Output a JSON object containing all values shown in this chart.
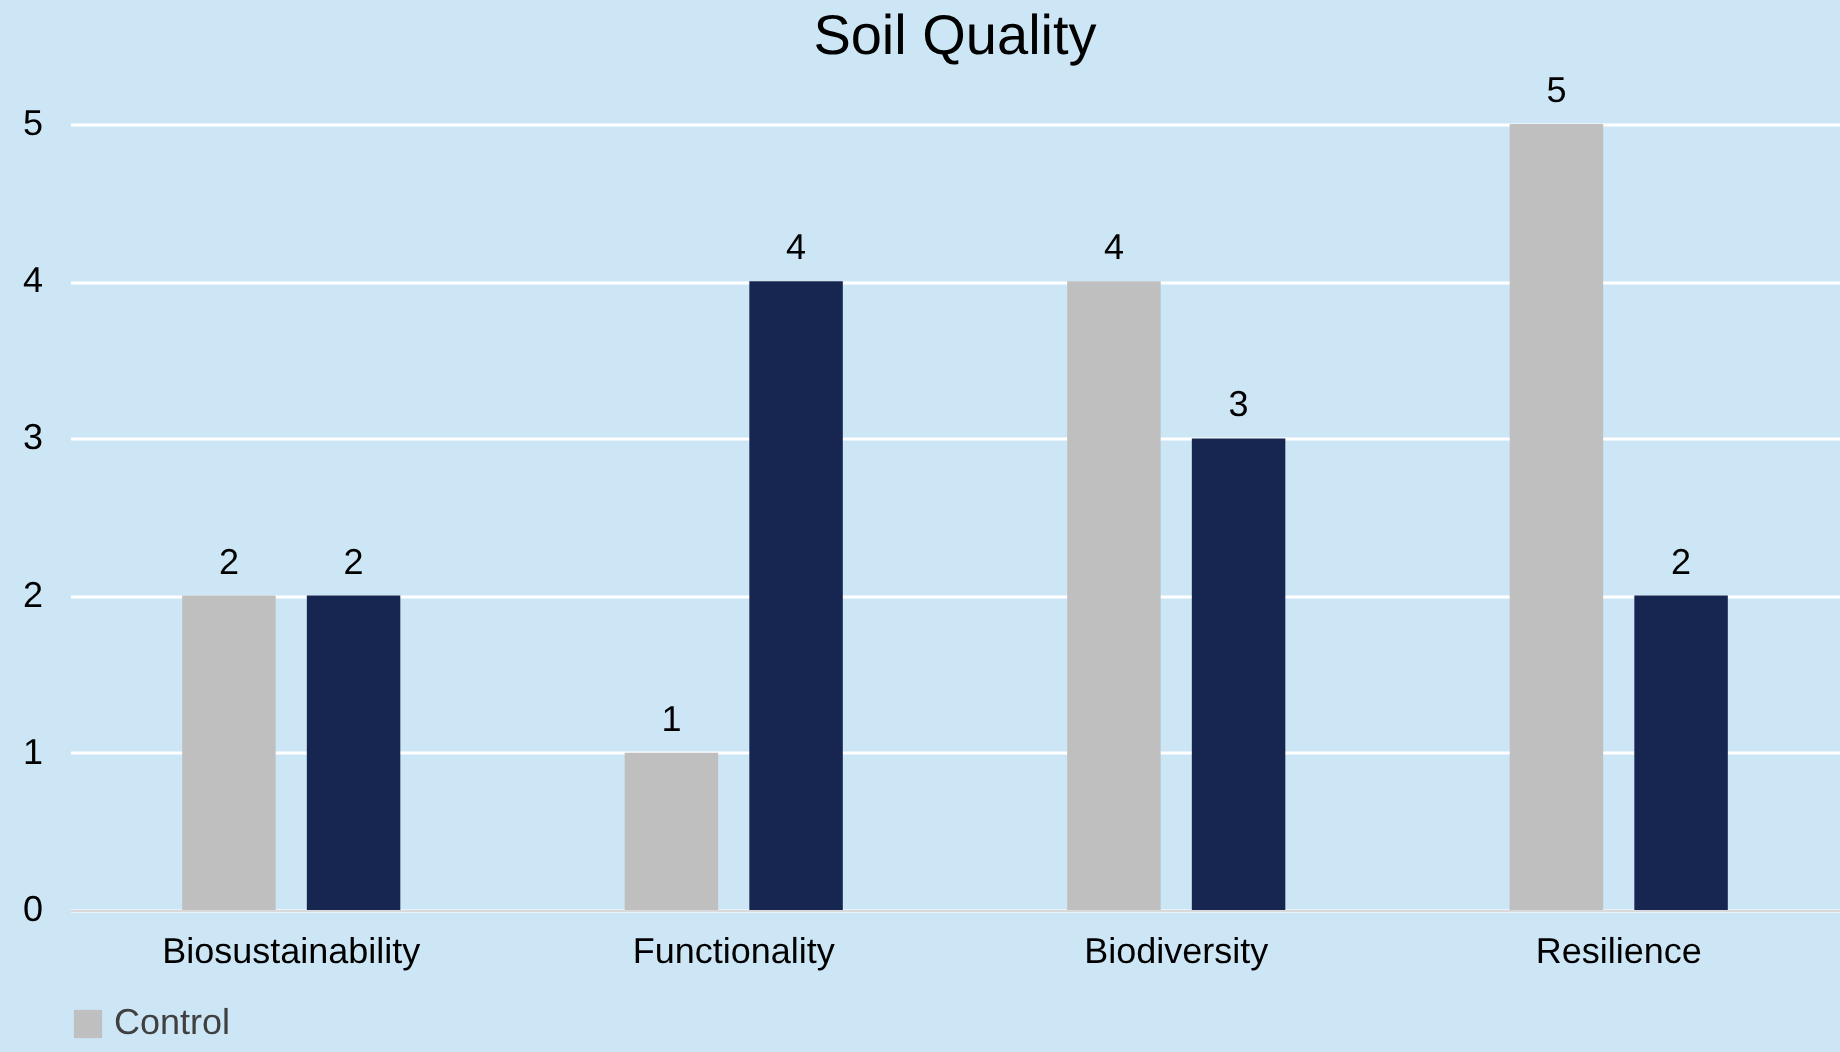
{
  "chart_data": {
    "type": "bar",
    "title": "Soil Quality",
    "categories": [
      "Biosustainability",
      "Functionality",
      "Biodiversity",
      "Resilience"
    ],
    "series": [
      {
        "name": "Control",
        "color": "#bfbfbf",
        "values": [
          2,
          1,
          4,
          5
        ]
      },
      {
        "color": "#172650",
        "values": [
          2,
          4,
          3,
          2
        ]
      }
    ],
    "ylim": [
      0,
      5
    ],
    "yticks": [
      0,
      1,
      2,
      3,
      4,
      5
    ],
    "grid": "y",
    "data_labels": true,
    "legend": "bottom"
  }
}
